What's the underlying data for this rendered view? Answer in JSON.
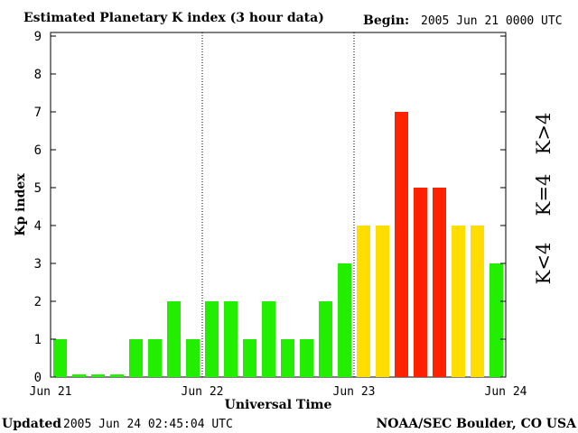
{
  "header": {
    "title": "Estimated Planetary K index (3 hour data)",
    "begin_label": "Begin:",
    "begin_value": "2005 Jun 21 0000 UTC"
  },
  "footer": {
    "updated_label": "Updated",
    "updated_value": "2005 Jun 24 02:45:04 UTC",
    "credit": "NOAA/SEC Boulder, CO USA"
  },
  "legend": {
    "low": "K<4",
    "mid": "K=4",
    "high": "K>4"
  },
  "colors": {
    "low": "#22ee00",
    "mid": "#ffdd00",
    "high": "#ff2200"
  },
  "chart_data": {
    "type": "bar",
    "title": "Estimated Planetary K index (3 hour data)",
    "xlabel": "Universal Time",
    "ylabel": "Kp index",
    "ylim": [
      0,
      9
    ],
    "yticks": [
      "0",
      "1",
      "2",
      "3",
      "4",
      "5",
      "6",
      "7",
      "8",
      "9"
    ],
    "xticks": [
      "Jun 21",
      "Jun 22",
      "Jun 23",
      "Jun 24"
    ],
    "day_dividers": "dotted vertical lines at Jun 22 and Jun 23",
    "grid": false,
    "bars_per_day": 8,
    "values": [
      1,
      0.07,
      0.07,
      0.07,
      1,
      1,
      2,
      1,
      2,
      2,
      1,
      2,
      1,
      1,
      2,
      3,
      4,
      4,
      7,
      5,
      5,
      4,
      4,
      3
    ],
    "color_rule": "green when K<4, yellow when K=4, red when K>4"
  }
}
